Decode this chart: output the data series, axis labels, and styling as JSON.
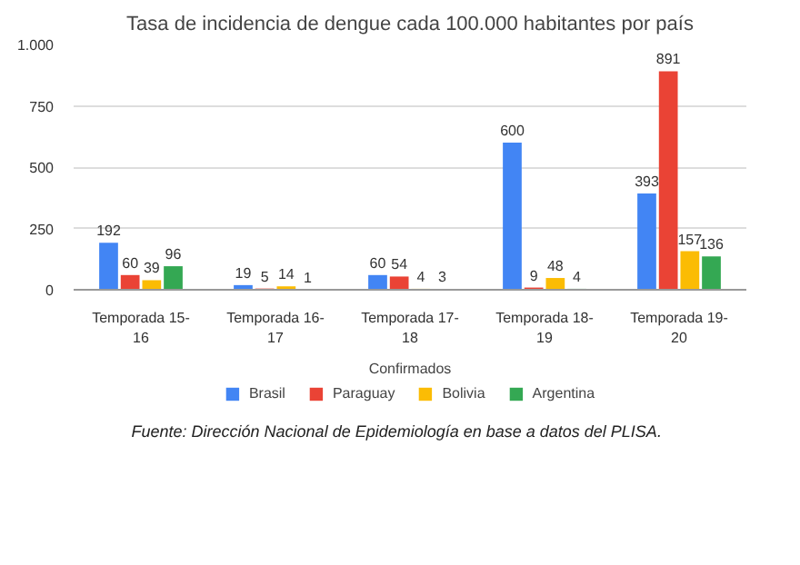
{
  "chart_data": {
    "type": "bar",
    "title": "Tasa de incidencia de dengue cada 100.000 habitantes por país",
    "categories": [
      "Temporada 15-16",
      "Temporada 16-17",
      "Temporada 17-18",
      "Temporada 18-19",
      "Temporada 19-20"
    ],
    "series": [
      {
        "name": "Brasil",
        "color": "#4285f4",
        "values": [
          192,
          19,
          60,
          600,
          393
        ]
      },
      {
        "name": "Paraguay",
        "color": "#ea4335",
        "values": [
          60,
          5,
          54,
          9,
          891
        ]
      },
      {
        "name": "Bolivia",
        "color": "#fbbc04",
        "values": [
          39,
          14,
          4,
          48,
          157
        ]
      },
      {
        "name": "Argentina",
        "color": "#34a853",
        "values": [
          96,
          1,
          3,
          4,
          136
        ]
      }
    ],
    "xlabel": "Confirmados",
    "ylim": [
      0,
      1000
    ],
    "yticks": [
      0,
      250,
      500,
      750,
      {
        "value": 1000,
        "label": "1.000"
      }
    ],
    "grid": "y",
    "legend": "bottom",
    "data_labels": true,
    "annotations": [
      "Fuente: Dirección Nacional de Epidemiología en base a datos del PLISA."
    ]
  }
}
